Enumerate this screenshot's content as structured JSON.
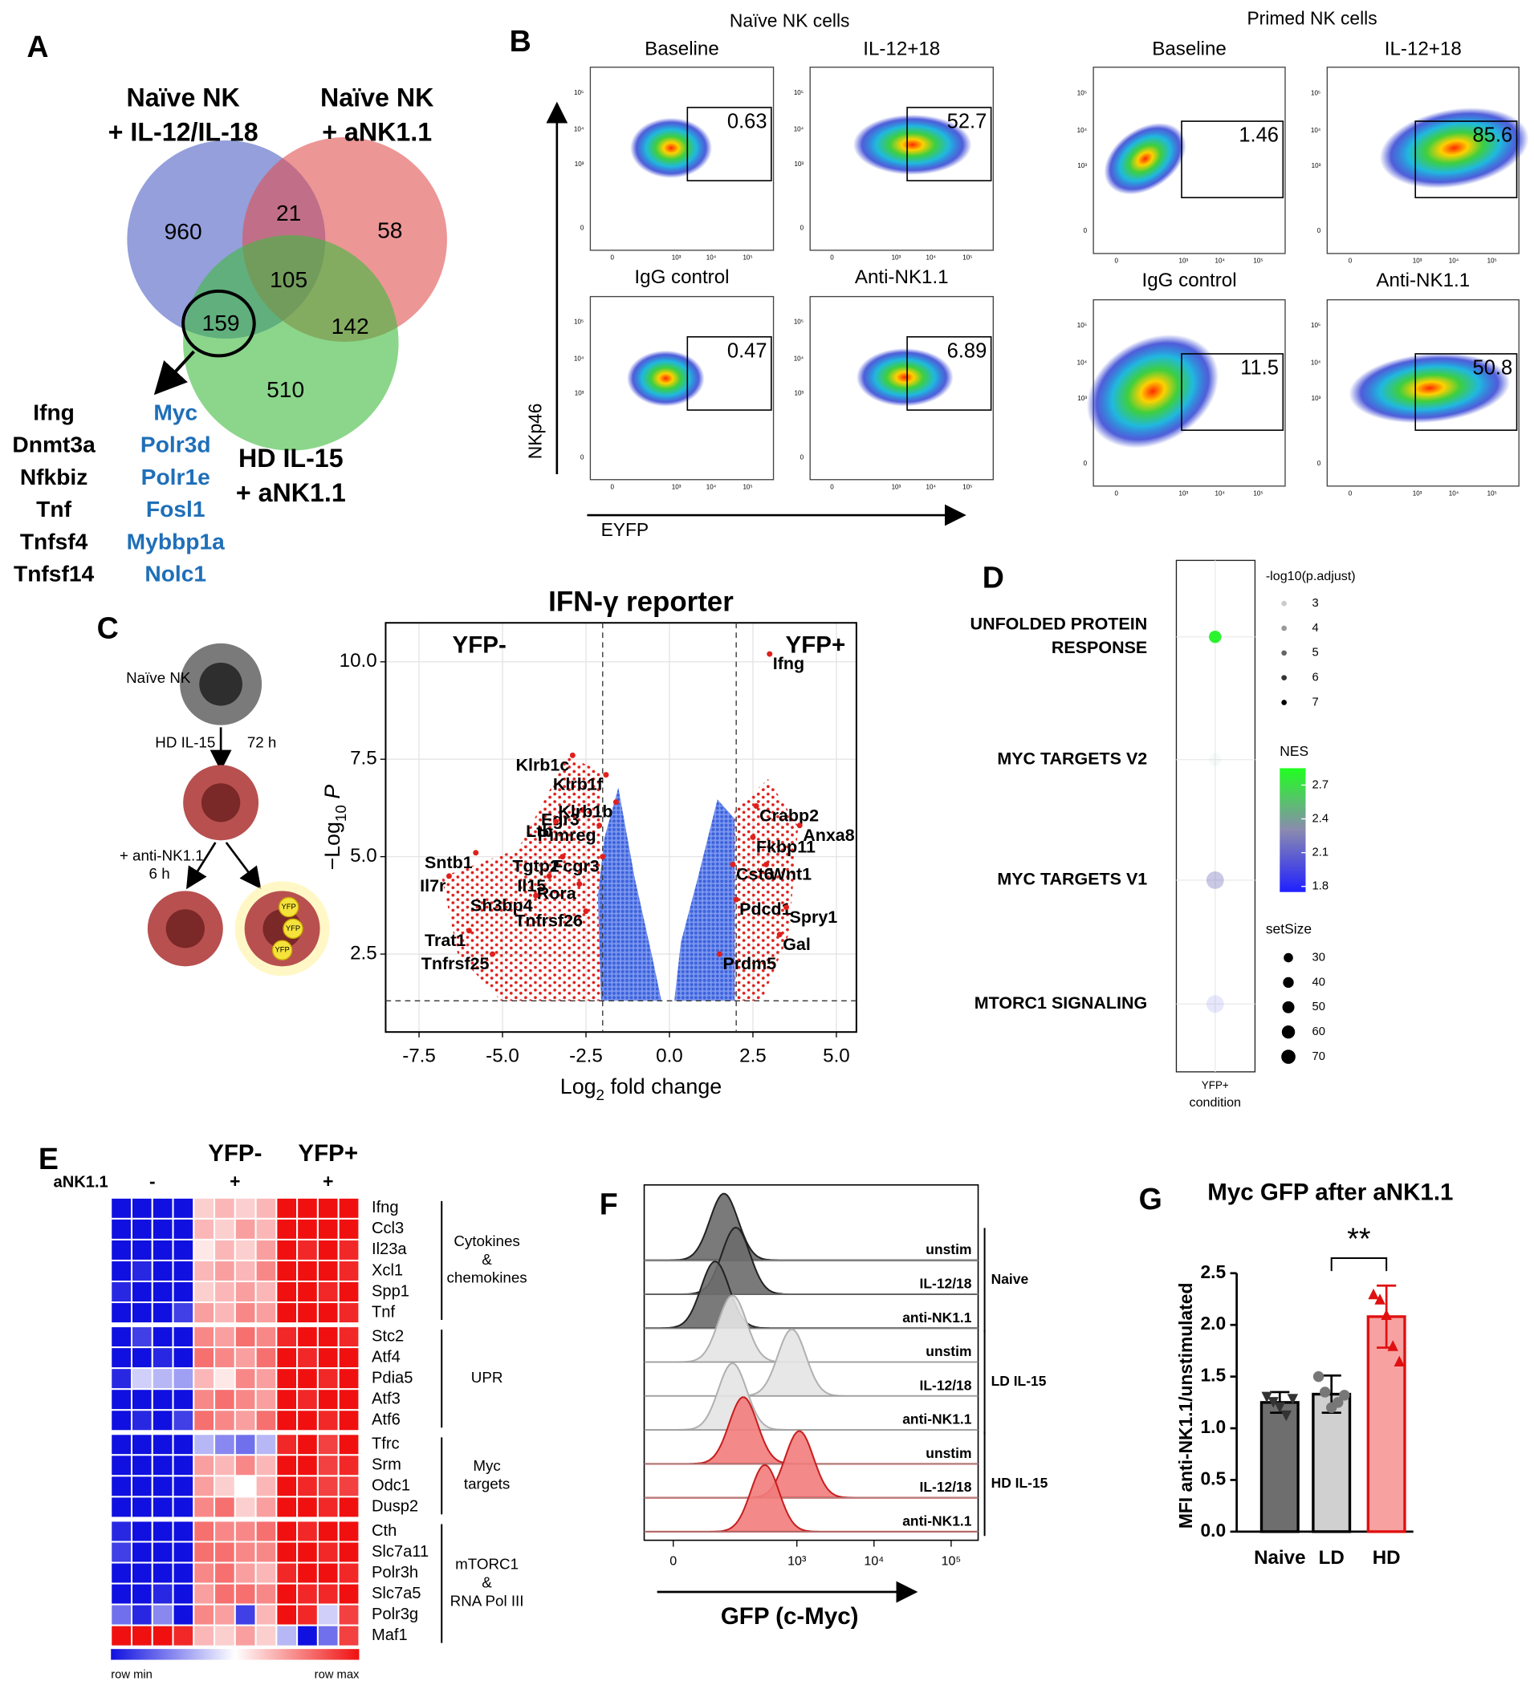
{
  "panel_labels": [
    "A",
    "B",
    "C",
    "D",
    "E",
    "F",
    "G"
  ],
  "venn": {
    "sets": [
      {
        "lines": [
          "Naïve NK",
          "+ IL-12/IL-18"
        ],
        "color": "#4d5fc4"
      },
      {
        "lines": [
          "Naïve NK",
          "+ aNK1.1"
        ],
        "color": "#e05050"
      },
      {
        "lines": [
          "HD IL-15",
          "+ aNK1.1"
        ],
        "color": "#3dbb3d"
      }
    ],
    "region_counts": [
      960,
      21,
      58,
      105,
      159,
      142,
      510
    ],
    "genes_black": [
      "Ifng",
      "Dnmt3a",
      "Nfkbiz",
      "Tnf",
      "Tnfsf4",
      "Tnfsf14"
    ],
    "genes_blue": [
      "Myc",
      "Polr3d",
      "Polr1e",
      "Fosl1",
      "Mybbp1a",
      "Nolc1"
    ]
  },
  "flow": {
    "groups": [
      {
        "title": "Naïve NK cells",
        "plots": [
          {
            "label": "Baseline",
            "gate": 0.63
          },
          {
            "label": "IL-12+18",
            "gate": 52.7
          },
          {
            "label": "IgG control",
            "gate": 0.47
          },
          {
            "label": "Anti-NK1.1",
            "gate": 6.89
          }
        ]
      },
      {
        "title": "Primed NK cells",
        "plots": [
          {
            "label": "Baseline",
            "gate": 1.46
          },
          {
            "label": "IL-12+18",
            "gate": 85.6
          },
          {
            "label": "IgG control",
            "gate": 11.5
          },
          {
            "label": "Anti-NK1.1",
            "gate": 50.8
          }
        ]
      }
    ],
    "axis_tick_labels": [
      "0",
      "10³",
      "10⁴",
      "10⁵"
    ],
    "y_label": "NKp46",
    "x_label": "EYFP"
  },
  "scheme": {
    "labels": [
      "Naïve NK",
      "HD IL-15",
      "72 h",
      "+ anti-NK1.1",
      "6 h",
      "YFP"
    ]
  },
  "chart_data": [
    {
      "type": "scatter",
      "title": "IFN-γ reporter",
      "xlabel": [
        "Log",
        "2",
        " fold change"
      ],
      "ylabel": [
        "−Log",
        "10",
        " P"
      ],
      "corner_labels": [
        "YFP-",
        "YFP+"
      ],
      "xlim": [
        -8.5,
        5.6
      ],
      "ylim": [
        0.5,
        11
      ],
      "xticks": [
        -7.5,
        {
          "value": -5,
          "label": "-5.0"
        },
        -2.5,
        {
          "value": 0,
          "label": "0.0"
        },
        2.5,
        {
          "value": 5,
          "label": "5.0"
        }
      ],
      "yticks": [
        2.5,
        {
          "value": 5,
          "label": "5.0"
        },
        7.5,
        {
          "value": 10,
          "label": "10.0"
        }
      ],
      "grid": true,
      "cutoffs": {
        "x": [
          -2,
          2
        ],
        "y": 1.3
      },
      "color": "#e0201c",
      "labels": [
        "Ifng",
        "Klrb1c",
        "Klrb1f",
        "Egr3",
        "Ltb",
        "Pimreg",
        "Klrb1b",
        "Crabp2",
        "Anxa8",
        "Fkbp11",
        "Sntb1",
        "Il7r",
        "Tgtp2",
        "Fcgr3",
        "Cst6",
        "Wnt1",
        "Il15",
        "Rora",
        "Sh3bp4",
        "Pdcd1",
        "Spry1",
        "Tnfrsf26",
        "Trat1",
        "Gal",
        "Tnfrsf25",
        "Prdm5"
      ],
      "x": [
        3.0,
        -2.9,
        -1.9,
        -2.6,
        -3.4,
        -2.1,
        -1.6,
        2.6,
        3.9,
        2.5,
        -5.8,
        -6.6,
        -3.2,
        -2.0,
        1.9,
        2.9,
        -3.6,
        -2.7,
        -4.0,
        2.0,
        3.5,
        -2.5,
        -6.0,
        3.3,
        -5.3,
        1.5
      ],
      "y": [
        10.2,
        7.6,
        7.1,
        6.2,
        5.9,
        5.8,
        6.4,
        6.3,
        5.8,
        5.5,
        5.1,
        4.5,
        5.0,
        5.0,
        4.8,
        4.8,
        4.5,
        4.3,
        4.0,
        3.9,
        3.7,
        3.6,
        3.1,
        3.0,
        2.5,
        2.5
      ]
    },
    {
      "type": "dot",
      "category_lines": [
        [
          "UNFOLDED PROTEIN",
          "RESPONSE"
        ],
        [
          "MYC TARGETS V2"
        ],
        [
          "MYC TARGETS V1"
        ],
        [
          "MTORC1 SIGNALING"
        ]
      ],
      "x_category": "YFP+",
      "xlabel": "condition",
      "nes": [
        2.8,
        2.5,
        2.2,
        1.9
      ],
      "neg_log10_padj": [
        7,
        2.2,
        4,
        2.6
      ],
      "set_size": [
        30,
        30,
        60,
        60
      ],
      "padj_legend": {
        "title": "-log10(p.adjust)",
        "values": [
          3,
          4,
          5,
          6,
          7
        ]
      },
      "nes_legend": {
        "title": "NES",
        "range": [
          1.75,
          2.85
        ],
        "ticks": [
          2.7,
          2.4,
          2.1,
          1.8
        ]
      },
      "size_legend": {
        "title": "setSize",
        "values": [
          30,
          40,
          50,
          60,
          70
        ]
      }
    },
    {
      "type": "heatmap",
      "column_groups": [
        "YFP-",
        "YFP+"
      ],
      "condition_label": "aNK1.1",
      "condition_values": [
        "-",
        "+",
        "+"
      ],
      "legend": [
        "row min",
        "row max"
      ],
      "row_groups": [
        {
          "lines": [
            "Cytokines",
            "&",
            "chemokines"
          ],
          "rows": [
            "Ifng",
            "Ccl3",
            "Il23a",
            "Xcl1",
            "Spp1",
            "Tnf"
          ],
          "values": [
            [
              -1,
              -1,
              -1,
              -1,
              0.2,
              0.3,
              0.2,
              0.3,
              1,
              1,
              1,
              1
            ],
            [
              -1,
              -1,
              -1,
              -1,
              0.3,
              0.2,
              0.4,
              0.3,
              1,
              1,
              1,
              1
            ],
            [
              -1,
              -1,
              -1,
              -1,
              0.1,
              0.3,
              0.2,
              0.4,
              1,
              0.9,
              1,
              0.9
            ],
            [
              -1,
              -0.9,
              -1,
              -1,
              0.3,
              0.4,
              0.3,
              0.5,
              1,
              1,
              1,
              0.9
            ],
            [
              -0.9,
              -1,
              -1,
              -1,
              0.2,
              0.3,
              0.4,
              0.3,
              1,
              1,
              0.9,
              1
            ],
            [
              -1,
              -1,
              -1,
              -0.8,
              0.4,
              0.3,
              0.5,
              0.4,
              1,
              1,
              1,
              0.9
            ]
          ]
        },
        {
          "lines": [
            "UPR"
          ],
          "rows": [
            "Stc2",
            "Atf4",
            "Pdia5",
            "Atf3",
            "Atf6"
          ],
          "values": [
            [
              -1,
              -0.8,
              -1,
              -1,
              0.5,
              0.4,
              0.6,
              0.5,
              0.9,
              1,
              1,
              0.9
            ],
            [
              -1,
              -1,
              -0.9,
              -1,
              0.6,
              0.5,
              0.4,
              0.6,
              1,
              0.9,
              1,
              1
            ],
            [
              -0.9,
              -0.2,
              -0.3,
              -0.4,
              0.3,
              0.1,
              0.5,
              0.4,
              1,
              1,
              0.9,
              1
            ],
            [
              -1,
              -1,
              -1,
              -1,
              0.5,
              0.6,
              0.5,
              0.4,
              1,
              0.9,
              1,
              1
            ],
            [
              -1,
              -0.9,
              -1,
              -0.8,
              0.6,
              0.5,
              0.4,
              0.6,
              1,
              1,
              0.9,
              1
            ]
          ]
        },
        {
          "lines": [
            "Myc",
            "targets"
          ],
          "rows": [
            "Tfrc",
            "Srm",
            "Odc1",
            "Dusp2"
          ],
          "values": [
            [
              -1,
              -1,
              -1,
              -1,
              -0.3,
              -0.5,
              -0.6,
              -0.3,
              0.9,
              1,
              0.8,
              1
            ],
            [
              -1,
              -1,
              -1,
              -1,
              0.4,
              0.3,
              0.5,
              0.3,
              1,
              1,
              0.8,
              0.9
            ],
            [
              -1,
              -1,
              -1,
              -1,
              0.4,
              0.2,
              0,
              0.3,
              1,
              0.9,
              0.8,
              0.8
            ],
            [
              -1,
              -1,
              -1,
              -1,
              0.5,
              0.6,
              0.2,
              0.4,
              1,
              1,
              0.9,
              1
            ]
          ]
        },
        {
          "lines": [
            "mTORC1",
            "&",
            "RNA Pol III"
          ],
          "rows": [
            "Cth",
            "Slc7a11",
            "Polr3h",
            "Slc7a5",
            "Polr3g",
            "Maf1"
          ],
          "values": [
            [
              -0.9,
              -1,
              -1,
              -1,
              0.6,
              0.5,
              0.5,
              0.6,
              1,
              0.9,
              1,
              1
            ],
            [
              -0.8,
              -1,
              -1,
              -1,
              0.6,
              0.6,
              0.5,
              0.5,
              1,
              1,
              0.9,
              1
            ],
            [
              -1,
              -1,
              -1,
              -1,
              0.5,
              0.6,
              0.4,
              0.3,
              0.9,
              1,
              1,
              0.9
            ],
            [
              -1,
              -1,
              -0.9,
              -1,
              0.4,
              0.6,
              0.6,
              0.5,
              1,
              0.9,
              0.9,
              1
            ],
            [
              -0.6,
              -0.9,
              -0.5,
              -1,
              0.5,
              0.4,
              -0.8,
              0.3,
              1,
              0.9,
              -0.2,
              0.8
            ],
            [
              1,
              1,
              1,
              0.9,
              0.3,
              0.2,
              0.4,
              0.2,
              -0.3,
              -1,
              -0.6,
              0.8
            ]
          ]
        }
      ]
    },
    {
      "type": "density",
      "xlabel": "GFP (c-Myc)",
      "xticks": [
        0,
        {
          "value": 1000,
          "label": "10³"
        },
        {
          "value": 10000,
          "label": "10⁴"
        },
        {
          "value": 100000,
          "label": "10⁵"
        }
      ],
      "groups": [
        {
          "name": "Naive",
          "color": "#6b6b6b",
          "line_color": "#222222",
          "traces": [
            {
              "label": "unstim",
              "peak": 108
            },
            {
              "label": "IL-12/18",
              "peak": 158
            },
            {
              "label": "anti-NK1.1",
              "peak": 80
            }
          ]
        },
        {
          "name": "LD IL-15",
          "color": "#e4e4e4",
          "line_color": "#b0b0b0",
          "traces": [
            {
              "label": "unstim",
              "peak": 142
            },
            {
              "label": "IL-12/18",
              "peak": 860
            },
            {
              "label": "anti-NK1.1",
              "peak": 142
            }
          ]
        },
        {
          "name": "HD IL-15",
          "color": "#f27c7c",
          "line_color": "#c81e1e",
          "traces": [
            {
              "label": "unstim",
              "peak": 199
            },
            {
              "label": "IL-12/18",
              "peak": 1075
            },
            {
              "label": "anti-NK1.1",
              "peak": 383
            }
          ]
        }
      ]
    },
    {
      "type": "bar",
      "title": "Myc GFP after aNK1.1",
      "ylabel": "MFI anti-NK1.1/unstimulated",
      "categories": [
        "Naive",
        "LD",
        "HD"
      ],
      "values": [
        1.25,
        1.33,
        2.08
      ],
      "errors": [
        0.1,
        0.18,
        0.3
      ],
      "colors": [
        "#6e6e6e",
        "#d0d0d0",
        "#f7a1a1"
      ],
      "edge_colors": [
        "#000000",
        "#000000",
        "#e01010"
      ],
      "points": [
        [
          1.3,
          1.25,
          1.2,
          1.12,
          1.28
        ],
        [
          1.5,
          1.35,
          1.2,
          1.25,
          1.32
        ],
        [
          2.3,
          2.25,
          2.1,
          1.8,
          1.65
        ]
      ],
      "ylim": [
        0,
        2.5
      ],
      "yticks": [
        {
          "value": 0,
          "label": "0.0"
        },
        0.5,
        {
          "value": 1,
          "label": "1.0"
        },
        1.5,
        {
          "value": 2,
          "label": "2.0"
        },
        2.5
      ],
      "significance": "**"
    }
  ]
}
